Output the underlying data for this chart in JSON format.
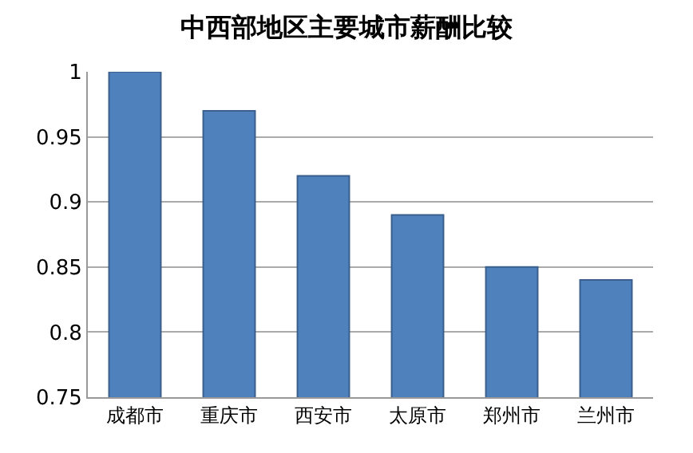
{
  "chart_data": {
    "type": "bar",
    "title": "中西部地区主要城市薪酬比较",
    "categories": [
      "成都市",
      "重庆市",
      "西安市",
      "太原市",
      "郑州市",
      "兰州市"
    ],
    "values": [
      1.0,
      0.97,
      0.92,
      0.89,
      0.85,
      0.84
    ],
    "color": "#4f81bd",
    "ylim": [
      0.75,
      1.0
    ],
    "yticks": [
      0.75,
      0.8,
      0.85,
      0.9,
      0.95,
      1
    ],
    "grid": "y"
  }
}
